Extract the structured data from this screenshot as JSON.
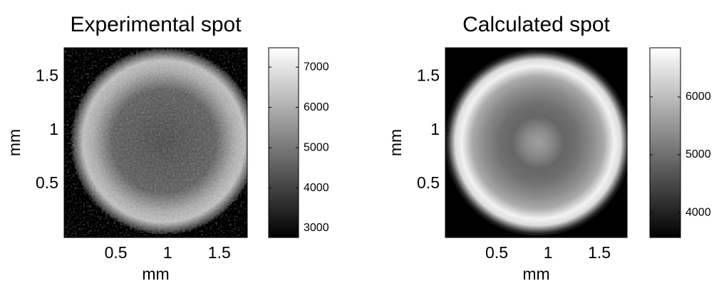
{
  "chart_data": [
    {
      "type": "image",
      "title": "Experimental spot",
      "xlabel": "mm",
      "ylabel": "mm",
      "xlim": [
        0,
        1.77
      ],
      "ylim": [
        0,
        1.77
      ],
      "xticks": [
        0.5,
        1,
        1.5
      ],
      "yticks": [
        0.5,
        1,
        1.5
      ],
      "clim": [
        2770,
        7480
      ],
      "cticks": [
        3000,
        4000,
        5000,
        6000,
        7000
      ]
    },
    {
      "type": "image",
      "title": "Calculated spot",
      "xlabel": "mm",
      "ylabel": "mm",
      "xlim": [
        0,
        1.77
      ],
      "ylim": [
        0,
        1.77
      ],
      "xticks": [
        0.5,
        1,
        1.5
      ],
      "yticks": [
        0.5,
        1,
        1.5
      ],
      "clim": [
        3570,
        6850
      ],
      "cticks": [
        4000,
        5000,
        6000
      ]
    }
  ]
}
